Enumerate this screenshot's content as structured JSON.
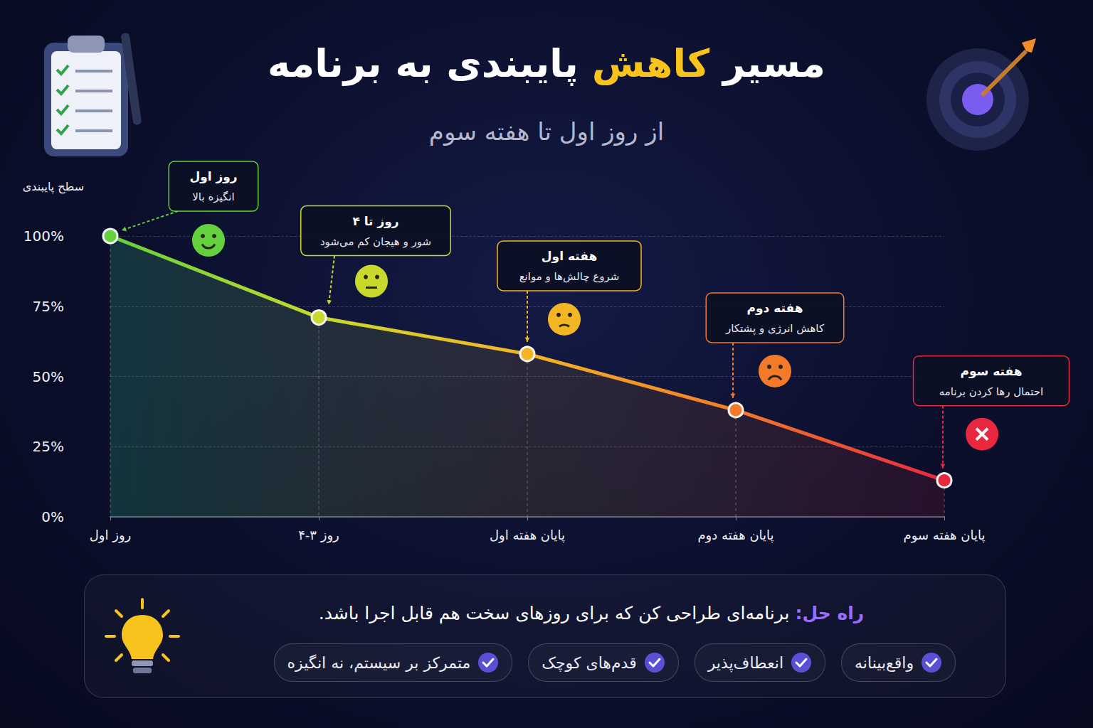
{
  "chart_data": {
    "type": "line",
    "title": "مسیر کاهش پایبندی به برنامه",
    "title_highlight": "کاهش",
    "subtitle": "از روز اول تا هفته سوم",
    "y_label": "سطح پایبندی",
    "categories": [
      "روز اول",
      "روز ۳-۴",
      "پایان هفته اول",
      "پایان هفته دوم",
      "پایان هفته سوم"
    ],
    "values": [
      100,
      71,
      58,
      38,
      13
    ],
    "colors": [
      "#62d13d",
      "#c8d82c",
      "#f3b524",
      "#f27a2a",
      "#e8283e"
    ],
    "marker": "circle",
    "ylim": [
      0,
      100
    ],
    "yticks": [
      {
        "value": 0,
        "label": "0%"
      },
      {
        "value": 25,
        "label": "25%"
      },
      {
        "value": 50,
        "label": "50%"
      },
      {
        "value": 75,
        "label": "75%"
      },
      {
        "value": 100,
        "label": "100%"
      }
    ],
    "grid": true,
    "annotations": [
      {
        "title": "روز اول",
        "text": "انگیزه بالا"
      },
      {
        "title": "روز تا ۴",
        "text": "شور و هیجان کم می‌شود"
      },
      {
        "title": "هفته اول",
        "text": "شروع چالش‌ها و موانع"
      },
      {
        "title": "هفته دوم",
        "text": "کاهش انرژی و پشتکار"
      },
      {
        "title": "هفته سوم",
        "text": "احتمال رها کردن برنامه"
      }
    ],
    "solution": {
      "label": "راه حل:",
      "text": "برنامه‌ای طراحی کن که برای روزهای سخت هم قابل اجرا باشد.",
      "points": [
        "واقع‌بینانه",
        "انعطاف‌پذیر",
        "قدم‌های کوچک",
        "متمرکز بر سیستم، نه انگیزه"
      ]
    }
  }
}
